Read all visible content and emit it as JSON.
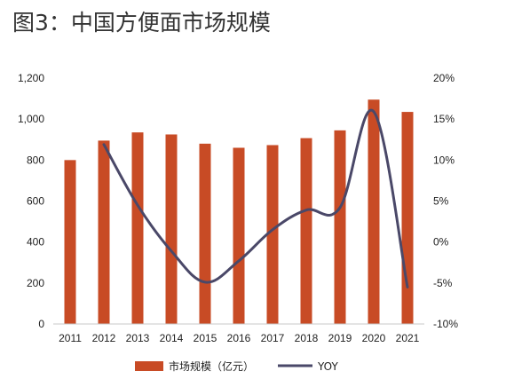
{
  "title": "图3：中国方便面市场规模",
  "chart_data": {
    "type": "bar+line",
    "categories": [
      "2011",
      "2012",
      "2013",
      "2014",
      "2015",
      "2016",
      "2017",
      "2018",
      "2019",
      "2020",
      "2021"
    ],
    "series": [
      {
        "name": "市场规模（亿元）",
        "type": "bar",
        "axis": "left",
        "color": "#C84B25",
        "values": [
          800,
          895,
          935,
          925,
          880,
          860,
          873,
          907,
          945,
          1095,
          1035
        ]
      },
      {
        "name": "YOY",
        "type": "line",
        "axis": "right",
        "color": "#4A4868",
        "values": [
          null,
          11.9,
          4.5,
          -1.1,
          -4.9,
          -2.3,
          1.5,
          3.9,
          4.2,
          15.9,
          -5.5
        ]
      }
    ],
    "y_left": {
      "ylim": [
        0,
        1200
      ],
      "ticks": [
        0,
        200,
        400,
        600,
        800,
        1000,
        1200
      ],
      "tick_labels": [
        "0",
        "200",
        "400",
        "600",
        "800",
        "1,000",
        "1,200"
      ]
    },
    "y_right": {
      "ylim": [
        -10,
        20
      ],
      "ticks": [
        -10,
        -5,
        0,
        5,
        10,
        15,
        20
      ],
      "tick_labels": [
        "-10%",
        "-5%",
        "0%",
        "5%",
        "10%",
        "15%",
        "20%"
      ]
    },
    "grid": false,
    "legend_position": "bottom"
  }
}
